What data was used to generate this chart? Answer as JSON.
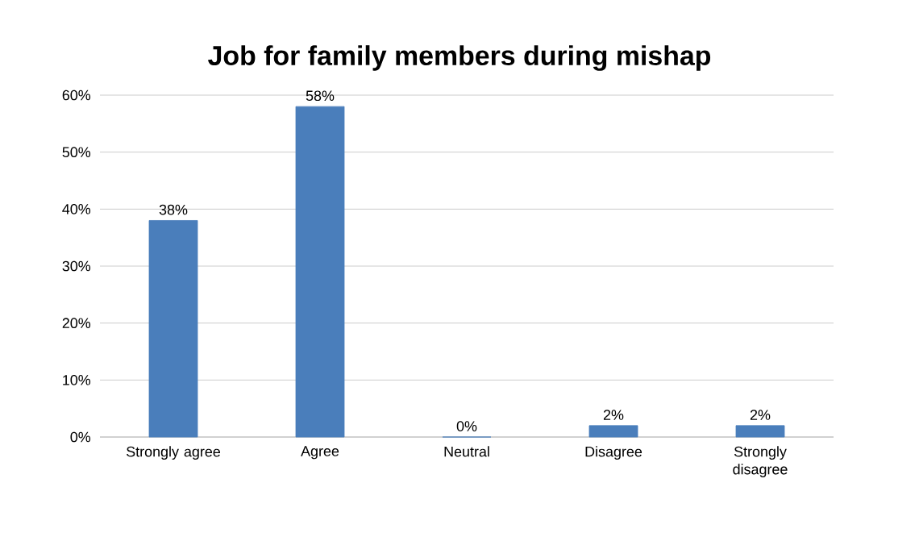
{
  "chart_data": {
    "type": "bar",
    "title": "Job for family members during mishap",
    "categories": [
      "Strongly agree",
      "Agree",
      "Neutral",
      "Disagree",
      "Strongly disagree"
    ],
    "values": [
      38,
      58,
      0,
      2,
      2
    ],
    "value_labels": [
      "38%",
      "58%",
      "0%",
      "2%",
      "2%"
    ],
    "color": "#4a7ebb",
    "ylim": [
      0,
      60
    ],
    "yticks": [
      {
        "value": 0,
        "label": "0%"
      },
      {
        "value": 10,
        "label": "10%"
      },
      {
        "value": 20,
        "label": "20%"
      },
      {
        "value": 30,
        "label": "30%"
      },
      {
        "value": 40,
        "label": "40%"
      },
      {
        "value": 50,
        "label": "50%"
      },
      {
        "value": 60,
        "label": "60%"
      }
    ],
    "grid": "y"
  }
}
